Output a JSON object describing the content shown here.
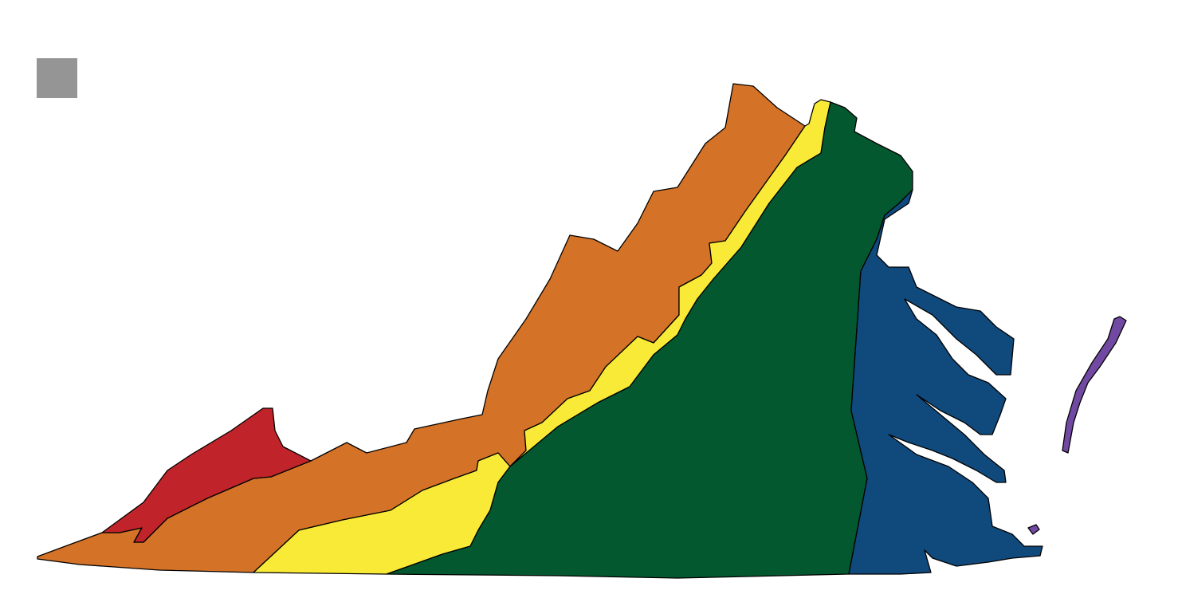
{
  "map": {
    "regions": [
      {
        "color": "#c0242a"
      },
      {
        "color": "#d47228"
      },
      {
        "color": "#f9ea37"
      },
      {
        "color": "#04582f"
      },
      {
        "color": "#10497c"
      },
      {
        "color": "#7149a2"
      }
    ],
    "button": {
      "color": "#959595"
    }
  }
}
